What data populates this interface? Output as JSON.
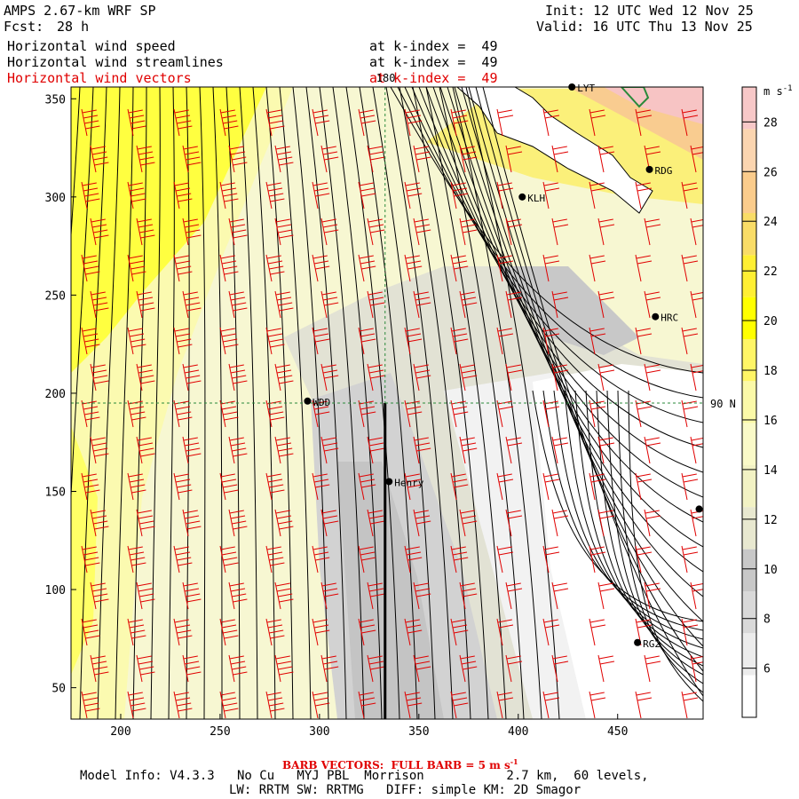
{
  "header": {
    "model": "AMPS 2.67-km WRF SP",
    "fcst_label": "Fcst:",
    "fcst_value": "28 h",
    "init": "Init: 12 UTC Wed 12 Nov 25",
    "valid": "Valid: 16 UTC Thu 13 Nov 25",
    "fields": [
      {
        "name": "Horizontal wind speed",
        "level": "at k-index =  49",
        "color": "#000000"
      },
      {
        "name": "Horizontal wind streamlines",
        "level": "at k-index =  49",
        "color": "#000000"
      },
      {
        "name": "Horizontal wind vectors",
        "level": "at k-index =  49",
        "color": "#e00000"
      }
    ]
  },
  "map": {
    "x_ticks": [
      "200",
      "250",
      "300",
      "350",
      "400",
      "450"
    ],
    "y_ticks": [
      "50",
      "100",
      "150",
      "200",
      "250",
      "300",
      "350"
    ],
    "x_range": [
      175,
      493
    ],
    "y_range": [
      34,
      356
    ],
    "meridian_label": "180",
    "meridian_x": 333,
    "parallel_label": "90 N",
    "parallel_y": 195,
    "stations": [
      {
        "name": "WDD",
        "x": 294,
        "y": 196
      },
      {
        "name": "Henry",
        "x": 335,
        "y": 155
      },
      {
        "name": "KLH",
        "x": 402,
        "y": 300
      },
      {
        "name": "RDG",
        "x": 466,
        "y": 314
      },
      {
        "name": "HRC",
        "x": 469,
        "y": 239
      },
      {
        "name": "RG2",
        "x": 460,
        "y": 73
      },
      {
        "name": "LYT",
        "x": 427,
        "y": 356
      },
      {
        "name": "",
        "x": 491,
        "y": 141
      }
    ]
  },
  "colorbar": {
    "unit": "m s",
    "unit_exp": "-1",
    "labels": [
      "6",
      "8",
      "10",
      "12",
      "14",
      "16",
      "18",
      "20",
      "22",
      "24",
      "26",
      "28"
    ],
    "colors": [
      "#ffffff",
      "#ececec",
      "#d9d9d9",
      "#c8c8c8",
      "#e8e8d0",
      "#f2f2c4",
      "#fafac8",
      "#fbf9a8",
      "#fff566",
      "#ffff00",
      "#ffef33",
      "#f9dc67",
      "#fbcc8c",
      "#fbd5b0",
      "#f7c8c8"
    ]
  },
  "footer": {
    "barb_note": "BARB VECTORS:  FULL BARB = 5 m s",
    "barb_exp": "-1",
    "line1": "Model Info: V4.3.3   No Cu   MYJ PBL  Morrison           2.7 km,  60 levels,",
    "line2": "LW: RRTM SW: RRTMG   DIFF: simple KM: 2D Smagor"
  }
}
